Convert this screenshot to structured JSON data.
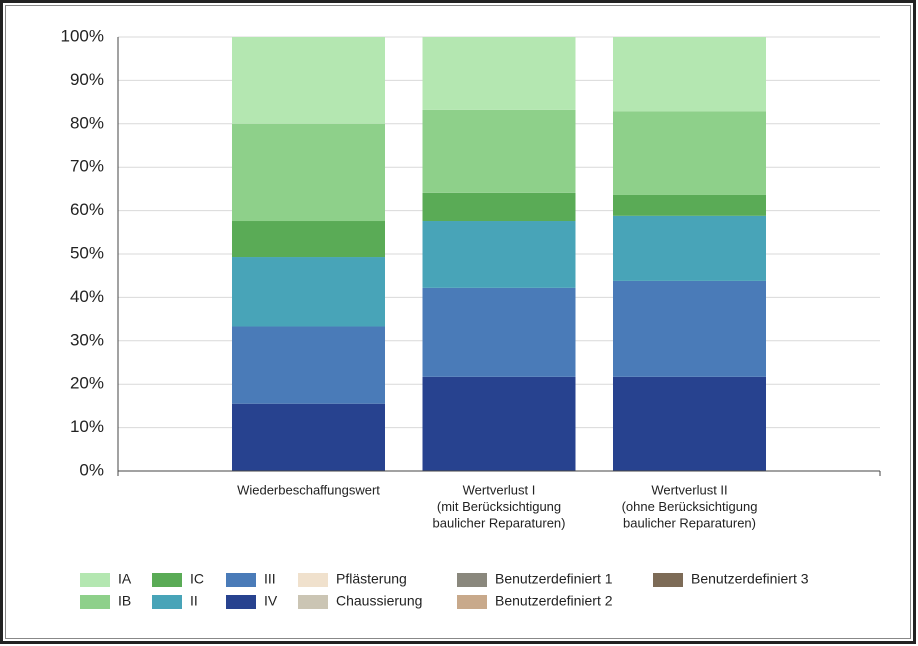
{
  "chart_data": {
    "type": "stacked_bar",
    "categories": [
      [
        "Wiederbeschaffungswert"
      ],
      [
        "Wertverlust I",
        "(mit Berücksichtigung",
        "baulicher Reparaturen)"
      ],
      [
        "Wertverlust II",
        "(ohne Berücksichtigung",
        "baulicher Reparaturen)"
      ]
    ],
    "series": [
      {
        "name": "IA",
        "color": "#b4e7b1",
        "values": [
          20,
          16.8,
          17.1
        ]
      },
      {
        "name": "IB",
        "color": "#8ed08a",
        "values": [
          22.4,
          19.1,
          19.3
        ]
      },
      {
        "name": "IC",
        "color": "#5aab56",
        "values": [
          8.3,
          6.5,
          4.8
        ]
      },
      {
        "name": "II",
        "color": "#48a4b8",
        "values": [
          16,
          15.4,
          15
        ]
      },
      {
        "name": "III",
        "color": "#4a7bb8",
        "values": [
          17.8,
          20.5,
          22.1
        ]
      },
      {
        "name": "IV",
        "color": "#27428f",
        "values": [
          15.5,
          21.7,
          21.7
        ]
      },
      {
        "name": "Pflästerung",
        "color": "#f0e1cd",
        "values": [
          0,
          0,
          0
        ]
      },
      {
        "name": "Chaussierung",
        "color": "#cbc5b4",
        "values": [
          0,
          0,
          0
        ]
      },
      {
        "name": "Benutzerdefiniert 1",
        "color": "#8a887d",
        "values": [
          0,
          0,
          0
        ]
      },
      {
        "name": "Benutzerdefiniert 2",
        "color": "#c8a98b",
        "values": [
          0,
          0,
          0
        ]
      },
      {
        "name": "Benutzerdefiniert 3",
        "color": "#7d6b57",
        "values": [
          0,
          0,
          0
        ]
      }
    ],
    "ylim": [
      0,
      100
    ],
    "yticks": [
      {
        "value": 0,
        "label": "0%"
      },
      {
        "value": 10,
        "label": "10%"
      },
      {
        "value": 20,
        "label": "20%"
      },
      {
        "value": 30,
        "label": "30%"
      },
      {
        "value": 40,
        "label": "40%"
      },
      {
        "value": 50,
        "label": "50%"
      },
      {
        "value": 60,
        "label": "60%"
      },
      {
        "value": 70,
        "label": "70%"
      },
      {
        "value": 80,
        "label": "80%"
      },
      {
        "value": 90,
        "label": "90%"
      },
      {
        "value": 100,
        "label": "100%"
      }
    ],
    "grid": true
  }
}
